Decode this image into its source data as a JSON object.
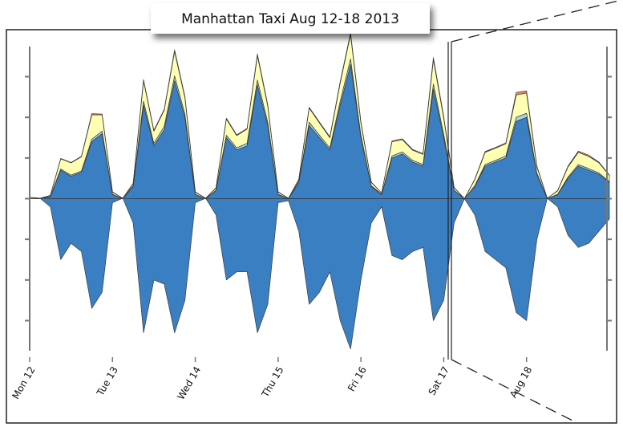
{
  "chart_data": {
    "type": "stream",
    "title": "Manhattan Taxi Aug 12-18 2013",
    "x": [
      0,
      3,
      6,
      9,
      12,
      15,
      18,
      21,
      24,
      27,
      30,
      33,
      36,
      39,
      42,
      45,
      48,
      51,
      54,
      57,
      60,
      63,
      66,
      69,
      72,
      75,
      78,
      81,
      84,
      87,
      90,
      93,
      96,
      99,
      102,
      105,
      108,
      111,
      114,
      117,
      120,
      123,
      126,
      129,
      132,
      135,
      138,
      141,
      144,
      147,
      150,
      153,
      156,
      159,
      162,
      165,
      168
    ],
    "xlim": [
      0,
      168
    ],
    "xticks": [
      {
        "value": 0,
        "label": "Mon 12"
      },
      {
        "value": 24,
        "label": "Tue 13"
      },
      {
        "value": 48,
        "label": "Wed 14"
      },
      {
        "value": 72,
        "label": "Thu 15"
      },
      {
        "value": 96,
        "label": "Fri 16"
      },
      {
        "value": 120,
        "label": "Sat 17"
      },
      {
        "value": 144,
        "label": "Aug 18"
      }
    ],
    "ylim": [
      -380,
      380
    ],
    "yticks": [
      -300,
      -200,
      -100,
      0,
      100,
      200,
      300
    ],
    "series": [
      {
        "color": "#3a7fc1",
        "values": [
          0,
          0,
          5,
          70,
          55,
          65,
          140,
          160,
          10,
          0,
          30,
          230,
          130,
          170,
          290,
          200,
          10,
          0,
          20,
          150,
          120,
          130,
          280,
          180,
          10,
          0,
          40,
          180,
          150,
          120,
          230,
          330,
          150,
          30,
          10,
          100,
          110,
          90,
          80,
          270,
          150,
          20,
          0,
          30,
          80,
          90,
          100,
          190,
          200,
          60,
          0,
          10,
          50,
          80,
          70,
          60,
          40
        ]
      },
      {
        "color": "#a9d3e6",
        "values": [
          0,
          0,
          1,
          3,
          3,
          3,
          6,
          6,
          1,
          0,
          2,
          10,
          6,
          8,
          12,
          8,
          1,
          0,
          1,
          6,
          5,
          6,
          12,
          8,
          1,
          0,
          2,
          8,
          6,
          5,
          10,
          14,
          6,
          2,
          1,
          5,
          5,
          4,
          4,
          12,
          8,
          1,
          0,
          2,
          4,
          4,
          5,
          10,
          10,
          3,
          0,
          1,
          3,
          4,
          4,
          3,
          2
        ]
      },
      {
        "color": "#ffffb3",
        "values": [
          3,
          1,
          2,
          25,
          30,
          35,
          60,
          40,
          5,
          1,
          5,
          50,
          30,
          40,
          60,
          40,
          5,
          1,
          5,
          40,
          30,
          35,
          60,
          40,
          5,
          1,
          5,
          35,
          30,
          25,
          45,
          60,
          30,
          8,
          3,
          35,
          30,
          25,
          25,
          60,
          40,
          6,
          0,
          15,
          30,
          30,
          30,
          55,
          50,
          15,
          1,
          8,
          25,
          30,
          30,
          25,
          15
        ]
      },
      {
        "color": "#f08a5a",
        "values": [
          0,
          0,
          0,
          1,
          1,
          1,
          3,
          2,
          1,
          0,
          1,
          3,
          2,
          2,
          4,
          3,
          1,
          0,
          1,
          2,
          2,
          2,
          4,
          3,
          1,
          0,
          1,
          2,
          2,
          2,
          3,
          4,
          3,
          1,
          0,
          2,
          2,
          2,
          2,
          5,
          4,
          1,
          0,
          1,
          2,
          2,
          2,
          6,
          5,
          2,
          0,
          1,
          2,
          3,
          3,
          2,
          1
        ]
      },
      {
        "color": "#3a7fc1",
        "values": [
          0,
          0,
          -20,
          -150,
          -110,
          -130,
          -270,
          -230,
          -10,
          0,
          -60,
          -330,
          -200,
          -210,
          -330,
          -250,
          -10,
          0,
          -40,
          -200,
          -180,
          -180,
          -330,
          -260,
          -10,
          -5,
          -80,
          -260,
          -230,
          -180,
          -300,
          -370,
          -200,
          -60,
          -20,
          -140,
          -150,
          -130,
          -120,
          -300,
          -250,
          -60,
          0,
          -40,
          -130,
          -150,
          -170,
          -280,
          -300,
          -100,
          0,
          -20,
          -90,
          -120,
          -110,
          -80,
          -50
        ]
      }
    ]
  }
}
